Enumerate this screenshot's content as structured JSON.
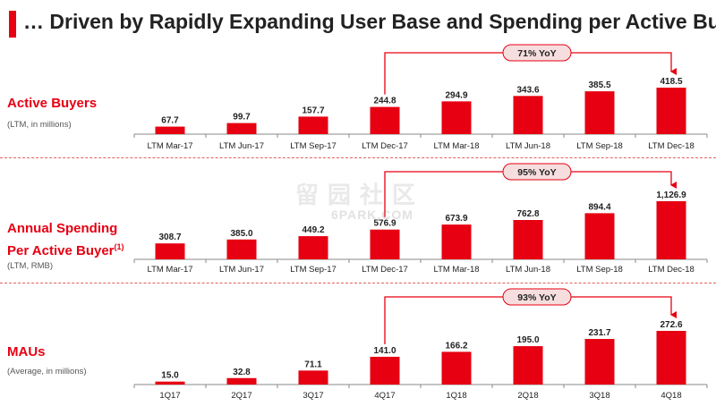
{
  "title": "… Driven by Rapidly Expanding User Base and Spending per Active Buyer",
  "colors": {
    "accent": "#e60012",
    "text": "#222222",
    "muted": "#555555"
  },
  "watermark": {
    "main": "留园社区",
    "sub": "6PARK.COM"
  },
  "panels": [
    {
      "title": "Active Buyers",
      "subtitle": "(LTM, in millions)"
    },
    {
      "title_line1": "Annual Spending",
      "title_line2": "Per Active Buyer",
      "title_sup": "(1)",
      "subtitle": "(LTM, RMB)"
    },
    {
      "title": "MAUs",
      "subtitle": "(Average, in millions)"
    }
  ],
  "chart_data": [
    {
      "type": "bar",
      "categories": [
        "LTM Mar-17",
        "LTM Jun-17",
        "LTM Sep-17",
        "LTM Dec-17",
        "LTM Mar-18",
        "LTM Jun-18",
        "LTM Sep-18",
        "LTM Dec-18"
      ],
      "values": [
        67.7,
        99.7,
        157.7,
        244.8,
        294.9,
        343.6,
        385.5,
        418.5
      ],
      "value_labels": [
        "67.7",
        "99.7",
        "157.7",
        "244.8",
        "294.9",
        "343.6",
        "385.5",
        "418.5"
      ],
      "annotation": {
        "text": "71% YoY",
        "from_index": 3,
        "to_index": 7
      },
      "color": "#e60012"
    },
    {
      "type": "bar",
      "categories": [
        "LTM Mar-17",
        "LTM Jun-17",
        "LTM Sep-17",
        "LTM Dec-17",
        "LTM Mar-18",
        "LTM Jun-18",
        "LTM Sep-18",
        "LTM Dec-18"
      ],
      "values": [
        308.7,
        385.0,
        449.2,
        576.9,
        673.9,
        762.8,
        894.4,
        1126.9
      ],
      "value_labels": [
        "308.7",
        "385.0",
        "449.2",
        "576.9",
        "673.9",
        "762.8",
        "894.4",
        "1,126.9"
      ],
      "annotation": {
        "text": "95% YoY",
        "from_index": 3,
        "to_index": 7
      },
      "color": "#e60012"
    },
    {
      "type": "bar",
      "categories": [
        "1Q17",
        "2Q17",
        "3Q17",
        "4Q17",
        "1Q18",
        "2Q18",
        "3Q18",
        "4Q18"
      ],
      "values": [
        15.0,
        32.8,
        71.1,
        141.0,
        166.2,
        195.0,
        231.7,
        272.6
      ],
      "value_labels": [
        "15.0",
        "32.8",
        "71.1",
        "141.0",
        "166.2",
        "195.0",
        "231.7",
        "272.6"
      ],
      "annotation": {
        "text": "93% YoY",
        "from_index": 3,
        "to_index": 7
      },
      "color": "#e60012"
    }
  ]
}
